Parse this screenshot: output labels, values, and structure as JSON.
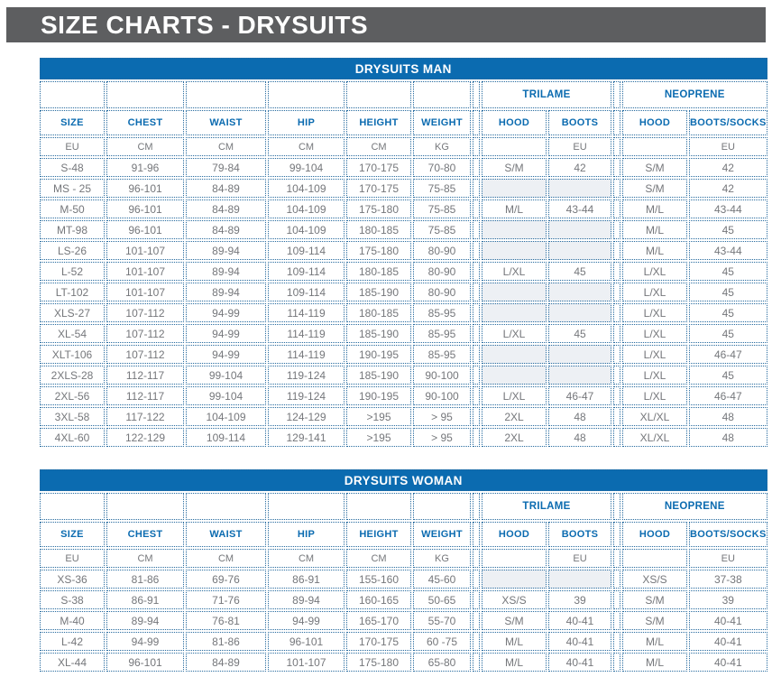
{
  "page_title": "SIZE CHARTS - DRYSUITS",
  "colors": {
    "header_bar": "#5d5e60",
    "accent_blue": "#0b6bb0",
    "border_blue": "#276b9f",
    "text_gray": "#75777b",
    "empty_cell_bg": "#edf0f4",
    "title_text": "#ffffff"
  },
  "charts": [
    {
      "title": "DRYSUITS MAN",
      "group_headers": {
        "trilame": "TRILAME",
        "neoprene": "NEOPRENE"
      },
      "columns": [
        "SIZE",
        "CHEST",
        "WAIST",
        "HIP",
        "HEIGHT",
        "WEIGHT",
        "HOOD",
        "BOOTS",
        "HOOD",
        "BOOTS/SOCKS"
      ],
      "units": [
        "EU",
        "CM",
        "CM",
        "CM",
        "CM",
        "KG",
        "",
        "EU",
        "",
        "EU"
      ],
      "rows": [
        [
          "S-48",
          "91-96",
          "79-84",
          "99-104",
          "170-175",
          "70-80",
          "S/M",
          "42",
          "S/M",
          "42"
        ],
        [
          "MS - 25",
          "96-101",
          "84-89",
          "104-109",
          "170-175",
          "75-85",
          "",
          "",
          "S/M",
          "42"
        ],
        [
          "M-50",
          "96-101",
          "84-89",
          "104-109",
          "175-180",
          "75-85",
          "M/L",
          "43-44",
          "M/L",
          "43-44"
        ],
        [
          "MT-98",
          "96-101",
          "84-89",
          "104-109",
          "180-185",
          "75-85",
          "",
          "",
          "M/L",
          "45"
        ],
        [
          "LS-26",
          "101-107",
          "89-94",
          "109-114",
          "175-180",
          "80-90",
          "",
          "",
          "M/L",
          "43-44"
        ],
        [
          "L-52",
          "101-107",
          "89-94",
          "109-114",
          "180-185",
          "80-90",
          "L/XL",
          "45",
          "L/XL",
          "45"
        ],
        [
          "LT-102",
          "101-107",
          "89-94",
          "109-114",
          "185-190",
          "80-90",
          "",
          "",
          "L/XL",
          "45"
        ],
        [
          "XLS-27",
          "107-112",
          "94-99",
          "114-119",
          "180-185",
          "85-95",
          "",
          "",
          "L/XL",
          "45"
        ],
        [
          "XL-54",
          "107-112",
          "94-99",
          "114-119",
          "185-190",
          "85-95",
          "L/XL",
          "45",
          "L/XL",
          "45"
        ],
        [
          "XLT-106",
          "107-112",
          "94-99",
          "114-119",
          "190-195",
          "85-95",
          "",
          "",
          "L/XL",
          "46-47"
        ],
        [
          "2XLS-28",
          "112-117",
          "99-104",
          "119-124",
          "185-190",
          "90-100",
          "",
          "",
          "L/XL",
          "45"
        ],
        [
          "2XL-56",
          "112-117",
          "99-104",
          "119-124",
          "190-195",
          "90-100",
          "L/XL",
          "46-47",
          "L/XL",
          "46-47"
        ],
        [
          "3XL-58",
          "117-122",
          "104-109",
          "124-129",
          ">195",
          "> 95",
          "2XL",
          "48",
          "XL/XL",
          "48"
        ],
        [
          "4XL-60",
          "122-129",
          "109-114",
          "129-141",
          ">195",
          "> 95",
          "2XL",
          "48",
          "XL/XL",
          "48"
        ]
      ]
    },
    {
      "title": "DRYSUITS WOMAN",
      "group_headers": {
        "trilame": "TRILAME",
        "neoprene": "NEOPRENE"
      },
      "columns": [
        "SIZE",
        "CHEST",
        "WAIST",
        "HIP",
        "HEIGHT",
        "WEIGHT",
        "HOOD",
        "BOOTS",
        "HOOD",
        "BOOTS/SOCKS"
      ],
      "units": [
        "EU",
        "CM",
        "CM",
        "CM",
        "CM",
        "KG",
        "",
        "EU",
        "",
        "EU"
      ],
      "rows": [
        [
          "XS-36",
          "81-86",
          "69-76",
          "86-91",
          "155-160",
          "45-60",
          "",
          "",
          "XS/S",
          "37-38"
        ],
        [
          "S-38",
          "86-91",
          "71-76",
          "89-94",
          "160-165",
          "50-65",
          "XS/S",
          "39",
          "S/M",
          "39"
        ],
        [
          "M-40",
          "89-94",
          "76-81",
          "94-99",
          "165-170",
          "55-70",
          "S/M",
          "40-41",
          "S/M",
          "40-41"
        ],
        [
          "L-42",
          "94-99",
          "81-86",
          "96-101",
          "170-175",
          "60 -75",
          "M/L",
          "40-41",
          "M/L",
          "40-41"
        ],
        [
          "XL-44",
          "96-101",
          "84-89",
          "101-107",
          "175-180",
          "65-80",
          "M/L",
          "40-41",
          "M/L",
          "40-41"
        ]
      ]
    }
  ]
}
